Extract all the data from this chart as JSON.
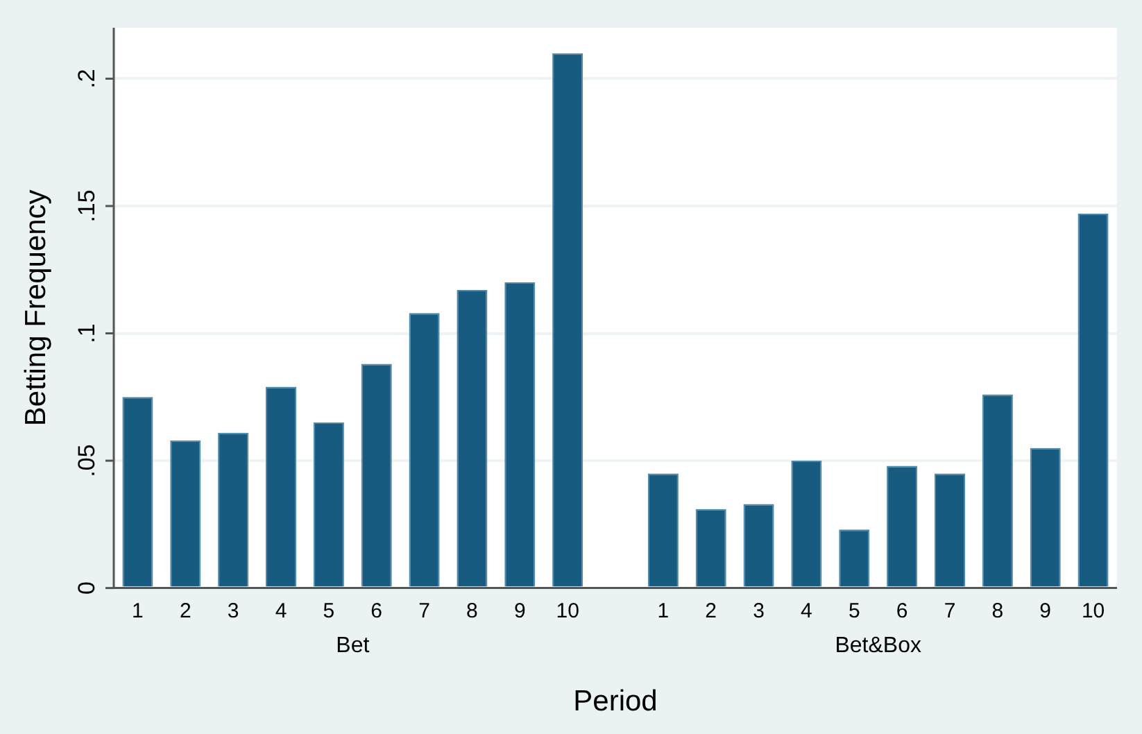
{
  "chart_data": {
    "type": "bar",
    "xlabel": "Period",
    "ylabel": "Betting Frequency",
    "categories": [
      "1",
      "2",
      "3",
      "4",
      "5",
      "6",
      "7",
      "8",
      "9",
      "10",
      null,
      "1",
      "2",
      "3",
      "4",
      "5",
      "6",
      "7",
      "8",
      "9",
      "10"
    ],
    "values": [
      0.075,
      0.058,
      0.061,
      0.079,
      0.065,
      0.088,
      0.108,
      0.117,
      0.12,
      0.21,
      null,
      0.045,
      0.031,
      0.033,
      0.05,
      0.023,
      0.048,
      0.045,
      0.076,
      0.055,
      0.147
    ],
    "color": "#185b80",
    "annotations": [
      "Bet",
      "Bet&Box"
    ],
    "ylim": [
      0,
      0.22
    ],
    "yticks": [
      0,
      {
        "value": 0.05,
        "label": ".05"
      },
      {
        "value": 0.1,
        "label": ".1"
      },
      {
        "value": 0.15,
        "label": ".15"
      },
      {
        "value": 0.2,
        "label": ".2"
      }
    ],
    "grid": "y",
    "legend": false
  }
}
